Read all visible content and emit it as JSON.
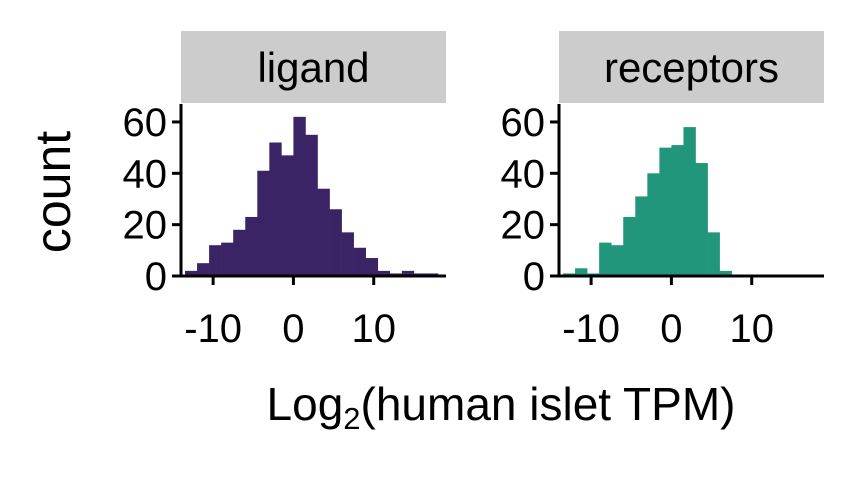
{
  "chart_data": {
    "type": "bar",
    "layout": "faceted-histogram",
    "ylabel": "count",
    "xlabel_base": "Log",
    "xlabel_sub": "2",
    "xlabel_rest": "(human islet TPM)",
    "xlim": [
      -14,
      19
    ],
    "ylim": [
      0,
      67
    ],
    "x_ticks": [
      -10,
      0,
      10
    ],
    "y_ticks": [
      0,
      20,
      40,
      60
    ],
    "bin_width": 1.5,
    "facets": [
      {
        "label": "ligand",
        "color": "#3b2466",
        "bins": [
          {
            "x": -12.75,
            "y": 2
          },
          {
            "x": -11.25,
            "y": 5
          },
          {
            "x": -9.75,
            "y": 12
          },
          {
            "x": -8.25,
            "y": 13
          },
          {
            "x": -6.75,
            "y": 18
          },
          {
            "x": -5.25,
            "y": 23
          },
          {
            "x": -3.75,
            "y": 41
          },
          {
            "x": -2.25,
            "y": 52
          },
          {
            "x": -0.75,
            "y": 47
          },
          {
            "x": 0.75,
            "y": 62
          },
          {
            "x": 2.25,
            "y": 55
          },
          {
            "x": 3.75,
            "y": 34
          },
          {
            "x": 5.25,
            "y": 26
          },
          {
            "x": 6.75,
            "y": 17
          },
          {
            "x": 8.25,
            "y": 11
          },
          {
            "x": 9.75,
            "y": 7
          },
          {
            "x": 11.25,
            "y": 2
          },
          {
            "x": 12.75,
            "y": 1
          },
          {
            "x": 14.25,
            "y": 2
          },
          {
            "x": 15.75,
            "y": 1
          },
          {
            "x": 17.25,
            "y": 1
          }
        ]
      },
      {
        "label": "receptors",
        "color": "#21967a",
        "bins": [
          {
            "x": -12.75,
            "y": 1
          },
          {
            "x": -11.25,
            "y": 3
          },
          {
            "x": -9.75,
            "y": 1
          },
          {
            "x": -8.25,
            "y": 13
          },
          {
            "x": -6.75,
            "y": 12
          },
          {
            "x": -5.25,
            "y": 23
          },
          {
            "x": -3.75,
            "y": 31
          },
          {
            "x": -2.25,
            "y": 40
          },
          {
            "x": -0.75,
            "y": 50
          },
          {
            "x": 0.75,
            "y": 51
          },
          {
            "x": 2.25,
            "y": 58
          },
          {
            "x": 3.75,
            "y": 44
          },
          {
            "x": 5.25,
            "y": 17
          },
          {
            "x": 6.75,
            "y": 2
          }
        ]
      }
    ]
  }
}
